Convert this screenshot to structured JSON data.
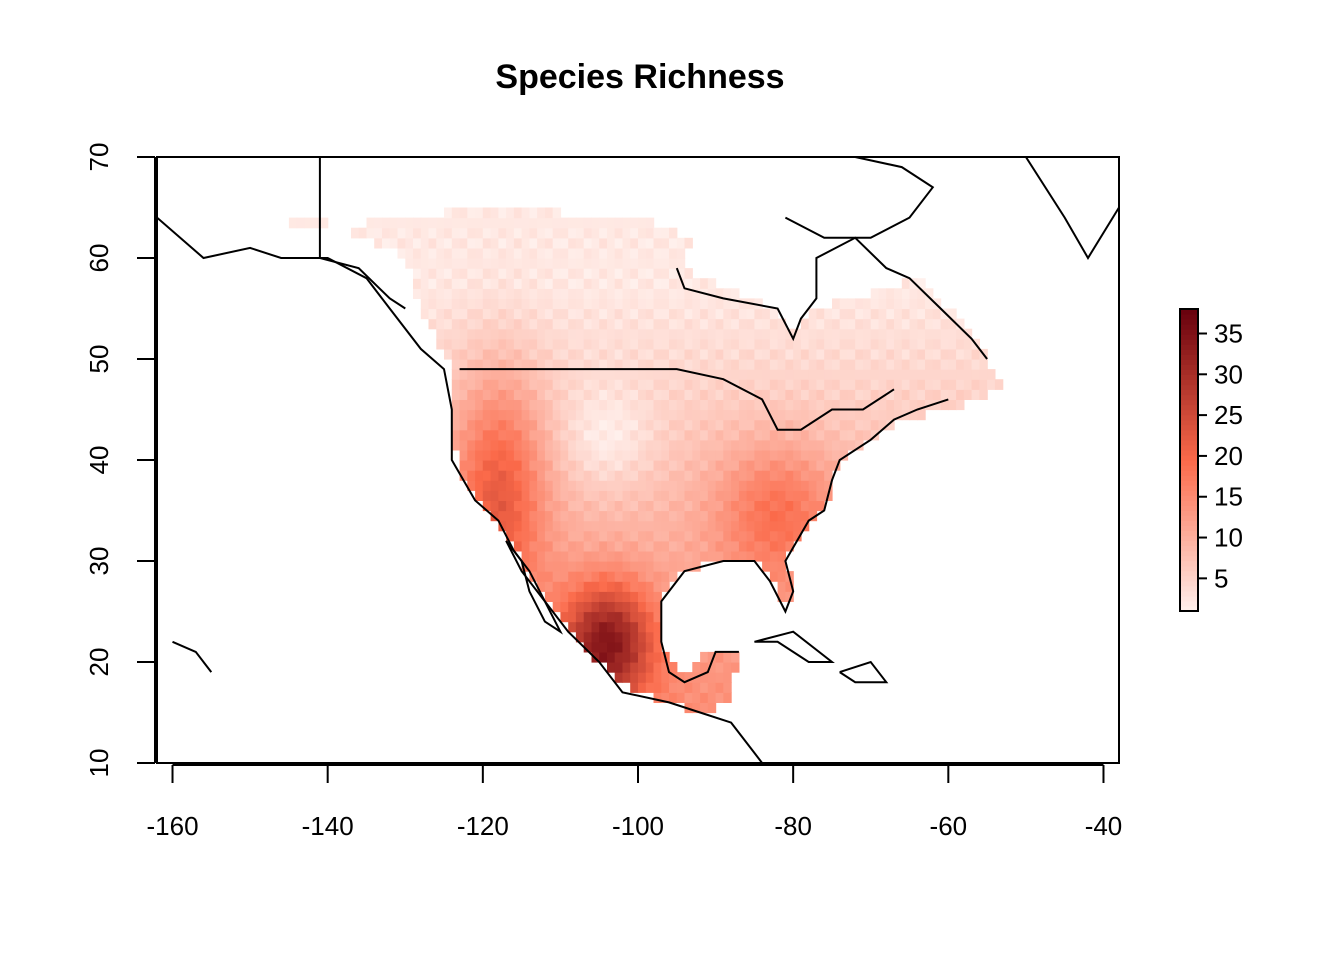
{
  "title": "Species Richness",
  "map": {
    "type": "raster-heatmap",
    "projection": "longitude-latitude",
    "xlim": [
      -162,
      -38
    ],
    "ylim": [
      10,
      70
    ],
    "x_ticks": [
      "-160",
      "-140",
      "-120",
      "-100",
      "-80",
      "-60",
      "-40"
    ],
    "y_ticks": [
      "10",
      "20",
      "30",
      "40",
      "50",
      "60",
      "70"
    ],
    "value_range": [
      1,
      38
    ],
    "legend_ticks": [
      "5",
      "10",
      "15",
      "20",
      "25",
      "30",
      "35"
    ],
    "legend_position": "right",
    "colors": {
      "low": "#fff0ec",
      "mid": "#fb6a4a",
      "high": "#67000d",
      "outline": "#000000"
    }
  }
}
